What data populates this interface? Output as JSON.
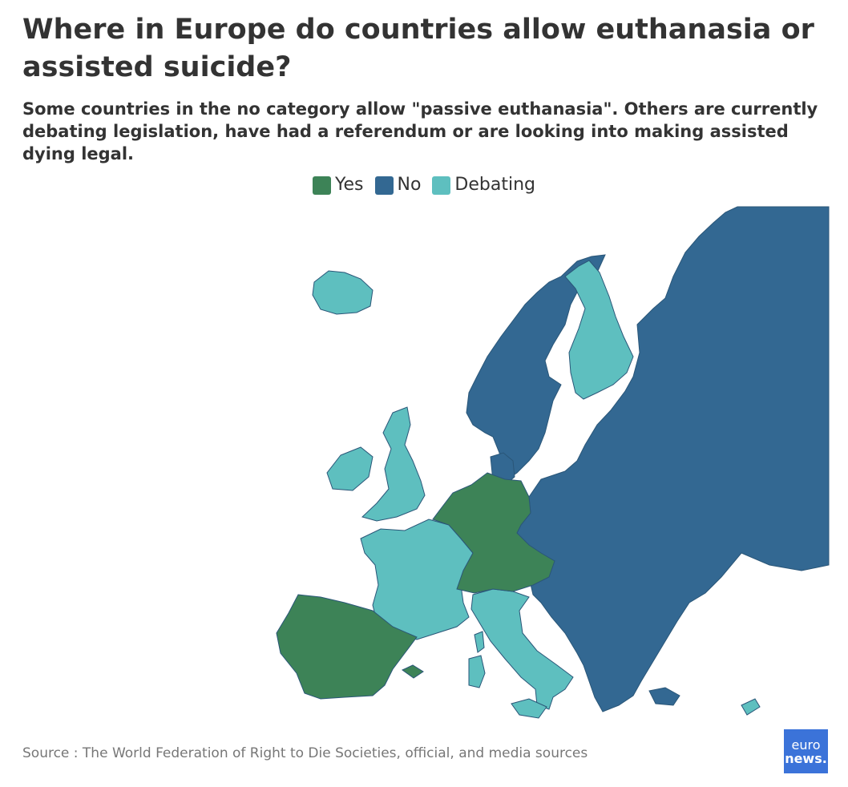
{
  "title": "Where in Europe do countries allow euthanasia or assisted suicide?",
  "subtitle": "Some countries in the no category allow \"passive euthanasia\". Others are currently debating legislation, have had a referendum or are looking into making assisted dying legal.",
  "legend": [
    {
      "label": "Yes",
      "color": "#3d8357"
    },
    {
      "label": "No",
      "color": "#336892"
    },
    {
      "label": "Debating",
      "color": "#5ebfbf"
    }
  ],
  "colors": {
    "yes": "#3d8357",
    "no": "#336892",
    "debating": "#5ebfbf",
    "border": "#2a5678"
  },
  "source": "Source : The World Federation of Right to Die Societies, official, and media sources",
  "logo": {
    "line1": "euro",
    "line2": "news."
  }
}
